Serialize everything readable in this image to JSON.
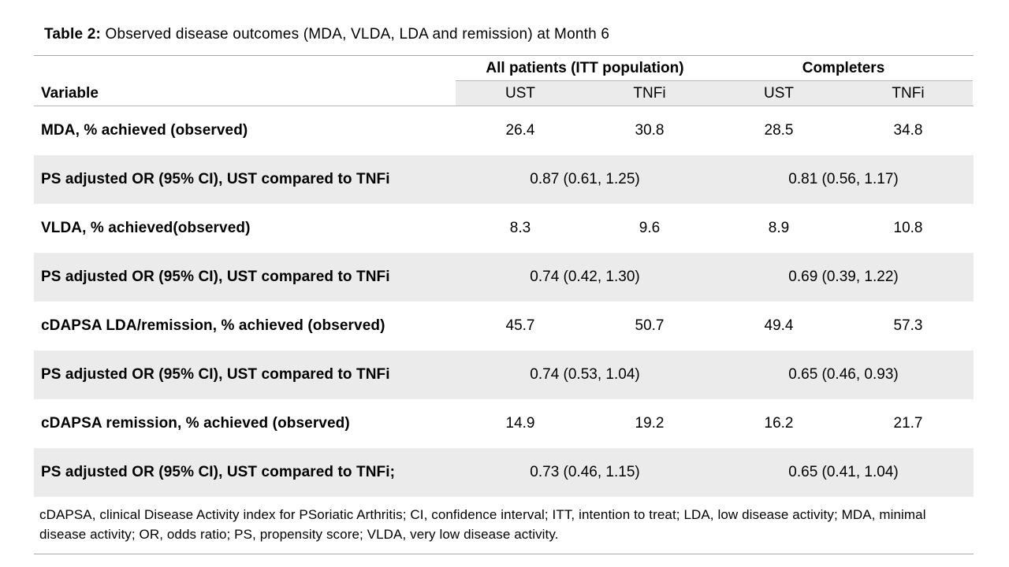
{
  "title": {
    "prefix": "Table 2:",
    "text": " Observed disease outcomes (MDA, VLDA, LDA and remission) at Month 6"
  },
  "table": {
    "variable_header": "Variable",
    "group_headers": [
      {
        "label": "All patients (ITT population)"
      },
      {
        "label": "Completers"
      }
    ],
    "sub_headers": [
      "UST",
      "TNFi",
      "UST",
      "TNFi"
    ],
    "rows": [
      {
        "type": "data",
        "label": "MDA, % achieved (observed)",
        "values": [
          "26.4",
          "30.8",
          "28.5",
          "34.8"
        ]
      },
      {
        "type": "or",
        "label": "PS adjusted OR (95% CI), UST compared to TNFi",
        "values": [
          "0.87 (0.61, 1.25)",
          "0.81 (0.56, 1.17)"
        ]
      },
      {
        "type": "data",
        "label": "VLDA, % achieved(observed)",
        "values": [
          "8.3",
          "9.6",
          "8.9",
          "10.8"
        ]
      },
      {
        "type": "or",
        "label": "PS adjusted OR (95% CI), UST compared to TNFi",
        "values": [
          "0.74 (0.42, 1.30)",
          "0.69 (0.39, 1.22)"
        ]
      },
      {
        "type": "data",
        "label": "cDAPSA LDA/remission, % achieved (observed)",
        "values": [
          "45.7",
          "50.7",
          "49.4",
          "57.3"
        ]
      },
      {
        "type": "or",
        "label": "PS adjusted OR (95% CI), UST compared to TNFi",
        "values": [
          "0.74 (0.53, 1.04)",
          "0.65 (0.46, 0.93)"
        ]
      },
      {
        "type": "data",
        "label": "cDAPSA remission, % achieved (observed)",
        "values": [
          "14.9",
          "19.2",
          "16.2",
          "21.7"
        ]
      },
      {
        "type": "or",
        "label": "PS adjusted OR (95% CI), UST compared to TNFi;",
        "values": [
          "0.73 (0.46, 1.15)",
          "0.65 (0.41, 1.04)"
        ]
      }
    ],
    "footnote": "cDAPSA, clinical Disease Activity index for PSoriatic Arthritis; CI, confidence interval; ITT, intention to treat; LDA, low disease activity; MDA, minimal disease activity; OR, odds ratio; PS, propensity score; VLDA, very low disease activity."
  },
  "colors": {
    "row_shade": "#ebebeb",
    "rule_outer": "#a9a9a9",
    "rule_inner": "#b7b7b7",
    "text": "#000000"
  }
}
